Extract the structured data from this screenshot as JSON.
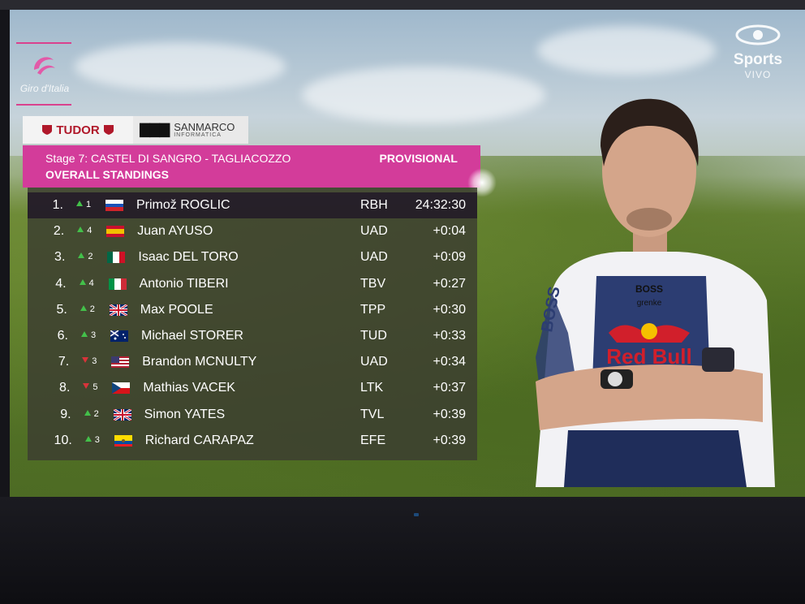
{
  "broadcast": {
    "giro_wordmark": "Giro d'Italia",
    "channel_name": "Sports",
    "channel_status": "VIVO"
  },
  "sponsors": {
    "tudor": "TUDOR",
    "sanmarco_name": "SANMARCO",
    "sanmarco_sub": "INFORMATICA"
  },
  "header": {
    "stage": "Stage 7: CASTEL DI SANGRO - TAGLIACOZZO",
    "title": "OVERALL STANDINGS",
    "status": "PROVISIONAL"
  },
  "standings": [
    {
      "pos": "1.",
      "move": "1",
      "dir": "up",
      "flag": "slovenia-flag",
      "first": "Primož",
      "last": "ROGLIC",
      "team": "RBH",
      "time": "24:32:30"
    },
    {
      "pos": "2.",
      "move": "4",
      "dir": "up",
      "flag": "spain-flag",
      "first": "Juan",
      "last": "AYUSO",
      "team": "UAD",
      "time": "+0:04"
    },
    {
      "pos": "3.",
      "move": "2",
      "dir": "up",
      "flag": "mexico-flag",
      "first": "Isaac",
      "last": "DEL TORO",
      "team": "UAD",
      "time": "+0:09"
    },
    {
      "pos": "4.",
      "move": "4",
      "dir": "up",
      "flag": "italy-flag",
      "first": "Antonio",
      "last": "TIBERI",
      "team": "TBV",
      "time": "+0:27"
    },
    {
      "pos": "5.",
      "move": "2",
      "dir": "up",
      "flag": "uk-flag",
      "first": "Max",
      "last": "POOLE",
      "team": "TPP",
      "time": "+0:30"
    },
    {
      "pos": "6.",
      "move": "3",
      "dir": "up",
      "flag": "australia-flag",
      "first": "Michael",
      "last": "STORER",
      "team": "TUD",
      "time": "+0:33"
    },
    {
      "pos": "7.",
      "move": "3",
      "dir": "down",
      "flag": "usa-flag",
      "first": "Brandon",
      "last": "MCNULTY",
      "team": "UAD",
      "time": "+0:34"
    },
    {
      "pos": "8.",
      "move": "5",
      "dir": "down",
      "flag": "czechia-flag",
      "first": "Mathias",
      "last": "VACEK",
      "team": "LTK",
      "time": "+0:37"
    },
    {
      "pos": "9.",
      "move": "2",
      "dir": "up",
      "flag": "uk-flag",
      "first": "Simon",
      "last": "YATES",
      "team": "TVL",
      "time": "+0:39"
    },
    {
      "pos": "10.",
      "move": "3",
      "dir": "up",
      "flag": "ecuador-flag",
      "first": "Richard",
      "last": "CARAPAZ",
      "team": "EFE",
      "time": "+0:39"
    }
  ],
  "jersey": {
    "sponsor_top": "BOSS",
    "sponsor_sub": "grenke",
    "main_sponsor": "Red Bull",
    "sleeve": "BOSS"
  },
  "colors": {
    "giro_pink": "#d33c9a",
    "up_arrow": "#43c04a",
    "down_arrow": "#d8333a"
  }
}
